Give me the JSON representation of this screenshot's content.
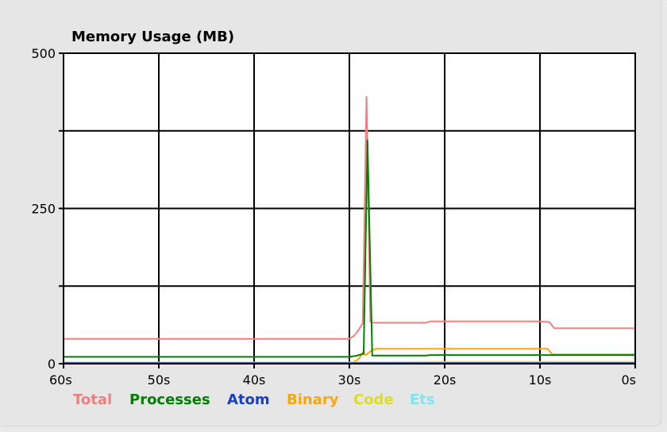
{
  "chart_data": {
    "type": "line",
    "title": "Memory Usage (MB)",
    "xlabel": "",
    "ylabel": "",
    "x_ticks": [
      "60s",
      "50s",
      "40s",
      "30s",
      "20s",
      "10s",
      "0s"
    ],
    "y_ticks": [
      {
        "value": 0,
        "label": "0"
      },
      {
        "value": 125,
        "label": ""
      },
      {
        "value": 250,
        "label": "250"
      },
      {
        "value": 375,
        "label": ""
      },
      {
        "value": 500,
        "label": "500"
      }
    ],
    "xlim": [
      60,
      0
    ],
    "ylim": [
      0,
      500
    ],
    "grid": true,
    "legend_position": "bottom",
    "series": [
      {
        "name": "Total",
        "color": "#f08080",
        "points": [
          [
            60,
            40
          ],
          [
            55,
            40
          ],
          [
            50,
            40
          ],
          [
            45,
            40
          ],
          [
            40,
            40
          ],
          [
            35,
            40
          ],
          [
            31,
            40
          ],
          [
            30,
            40
          ],
          [
            29.5,
            45
          ],
          [
            29,
            55
          ],
          [
            28.6,
            65
          ],
          [
            28.2,
            430
          ],
          [
            27.8,
            68
          ],
          [
            27.5,
            66
          ],
          [
            25,
            66
          ],
          [
            22,
            66
          ],
          [
            21.5,
            68
          ],
          [
            15,
            68
          ],
          [
            10,
            68
          ],
          [
            9,
            67
          ],
          [
            8.5,
            57
          ],
          [
            5,
            57
          ],
          [
            0,
            57
          ]
        ]
      },
      {
        "name": "Processes",
        "color": "#008000",
        "points": [
          [
            60,
            11
          ],
          [
            55,
            11
          ],
          [
            50,
            11
          ],
          [
            45,
            11
          ],
          [
            40,
            11
          ],
          [
            35,
            11
          ],
          [
            31,
            11
          ],
          [
            30,
            11
          ],
          [
            29.2,
            13
          ],
          [
            28.5,
            16
          ],
          [
            28.1,
            360
          ],
          [
            27.6,
            13
          ],
          [
            25,
            13
          ],
          [
            22,
            13
          ],
          [
            21.5,
            14
          ],
          [
            15,
            14
          ],
          [
            10,
            14
          ],
          [
            8.5,
            14
          ],
          [
            5,
            14
          ],
          [
            0,
            14
          ]
        ]
      },
      {
        "name": "Atom",
        "color": "#1a3fbf",
        "points": [
          [
            60,
            1
          ],
          [
            30,
            1
          ],
          [
            0,
            1
          ]
        ]
      },
      {
        "name": "Binary",
        "color": "#ffa500",
        "points": [
          [
            60,
            0.5
          ],
          [
            30,
            0.5
          ],
          [
            29.6,
            2
          ],
          [
            29,
            8
          ],
          [
            28.6,
            18
          ],
          [
            28.3,
            14
          ],
          [
            27.6,
            22
          ],
          [
            27.2,
            24
          ],
          [
            25,
            24
          ],
          [
            20,
            24
          ],
          [
            15,
            24
          ],
          [
            9.2,
            24
          ],
          [
            8.7,
            15
          ],
          [
            5,
            15
          ],
          [
            0,
            15
          ]
        ]
      },
      {
        "name": "Code",
        "color": "#dede20",
        "points": [
          [
            60,
            2
          ],
          [
            30,
            2
          ],
          [
            20,
            3
          ],
          [
            10,
            3
          ],
          [
            0,
            3
          ]
        ]
      },
      {
        "name": "Ets",
        "color": "#7fe6ef",
        "points": [
          [
            60,
            0.8
          ],
          [
            30,
            0.8
          ],
          [
            0,
            1
          ]
        ]
      }
    ]
  }
}
